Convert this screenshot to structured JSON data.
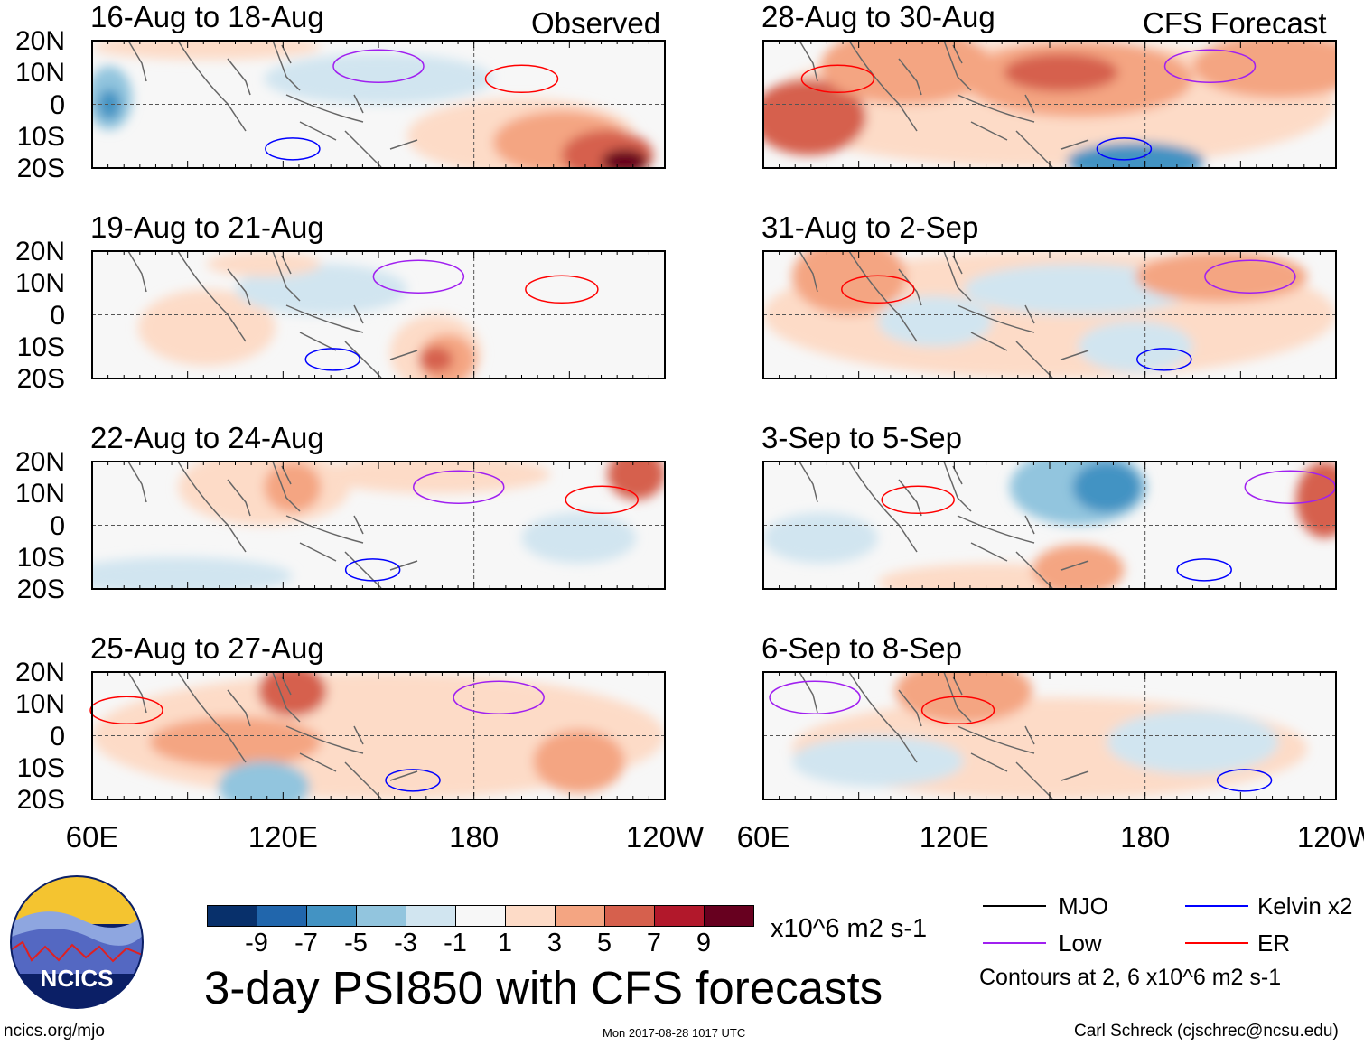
{
  "left_header": "Observed",
  "right_header": "CFS Forecast",
  "left_panels": [
    "16-Aug to 18-Aug",
    "19-Aug to 21-Aug",
    "22-Aug to 24-Aug",
    "25-Aug to 27-Aug"
  ],
  "right_panels": [
    "28-Aug to 30-Aug",
    "31-Aug to 2-Sep",
    "3-Sep to 5-Sep",
    "6-Sep to 8-Sep"
  ],
  "lat_labels": [
    "20N",
    "10N",
    "0",
    "10S",
    "20S"
  ],
  "lon_labels": [
    "60E",
    "120E",
    "180",
    "120W"
  ],
  "colorbar": {
    "colors": [
      "#08306b",
      "#2166ac",
      "#4393c3",
      "#92c5de",
      "#d1e5f0",
      "#f7f7f7",
      "#fddbc7",
      "#f4a582",
      "#d6604d",
      "#b2182b",
      "#67001f"
    ],
    "ticks": [
      "-9",
      "-7",
      "-5",
      "-3",
      "-1",
      "1",
      "3",
      "5",
      "7",
      "9"
    ],
    "units": "x10^6 m2 s-1"
  },
  "title": "3-day PSI850 with CFS forecasts",
  "legend": {
    "items": [
      {
        "label": "MJO",
        "color": "#000000"
      },
      {
        "label": "Kelvin x2",
        "color": "#0000ff"
      },
      {
        "label": "Low",
        "color": "#a020f0"
      },
      {
        "label": "ER",
        "color": "#ff0000"
      }
    ],
    "note": "Contours at 2, 6 x10^6 m2 s-1"
  },
  "logo_text": "NCICS",
  "footer": {
    "url": "ncics.org/mjo",
    "timestamp": "Mon 2017-08-28 1017 UTC",
    "credit": "Carl Schreck (cjschrec@ncsu.edu)"
  }
}
